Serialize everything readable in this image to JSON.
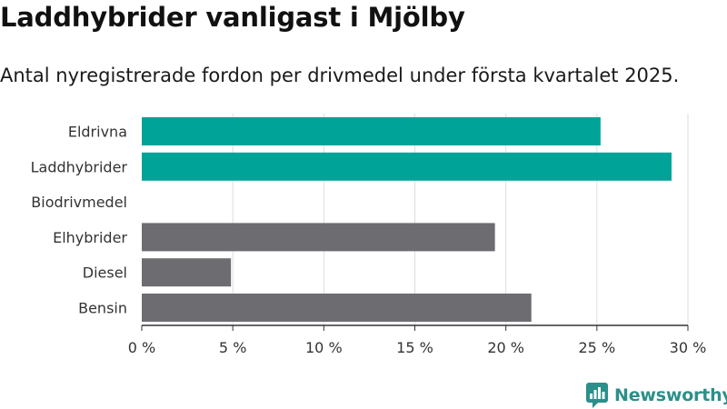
{
  "title": "Laddhybrider vanligast i Mjölby",
  "subtitle": "Antal nyregistrerade fordon per drivmedel under första kvartalet 2025.",
  "brand": {
    "name": "Newsworthy",
    "icon": "newsworthy-logo-icon",
    "color": "#2b8f8a"
  },
  "colors": {
    "highlight": "#00a398",
    "default": "#6d6c71",
    "grid": "#dddddd",
    "axis": "#333333"
  },
  "chart_data": {
    "type": "bar",
    "orientation": "horizontal",
    "title": "Laddhybrider vanligast i Mjölby",
    "subtitle": "Antal nyregistrerade fordon per drivmedel under första kvartalet 2025.",
    "categories": [
      "Eldrivna",
      "Laddhybrider",
      "Biodrivmedel",
      "Elhybrider",
      "Diesel",
      "Bensin"
    ],
    "values": [
      25.2,
      29.1,
      0,
      19.4,
      4.9,
      21.4
    ],
    "highlight": [
      true,
      true,
      false,
      false,
      false,
      false
    ],
    "unit": "%",
    "xlim": [
      0,
      30
    ],
    "xticks": [
      0,
      5,
      10,
      15,
      20,
      25,
      30
    ],
    "xtick_labels": [
      "0 %",
      "5 %",
      "10 %",
      "15 %",
      "20 %",
      "25 %",
      "30 %"
    ],
    "grid": true
  }
}
